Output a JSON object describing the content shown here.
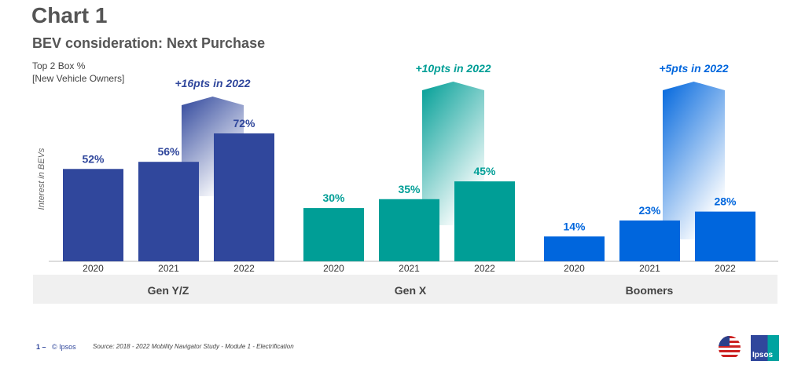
{
  "title": "Chart 1",
  "subtitle": "BEV consideration: Next Purchase",
  "note1": "Top 2 Box %",
  "note2": "[New Vehicle Owners]",
  "footer": {
    "page": "1 –",
    "copyright": "© Ipsos",
    "source": "Source: 2018 - 2022 Mobility Navigator Study - Module 1 - Electrification",
    "logo": "Ipsos"
  },
  "chart_data": {
    "type": "bar",
    "ylabel": "Interest in BEVs",
    "ylim": [
      0,
      100
    ],
    "grid": false,
    "groups": [
      {
        "name": "Gen Y/Z",
        "color": "#30479c",
        "categories": [
          "2020",
          "2021",
          "2022"
        ],
        "values": [
          52,
          56,
          72
        ],
        "labels": [
          "52%",
          "56%",
          "72%"
        ],
        "annotation": "+16pts in 2022"
      },
      {
        "name": "Gen X",
        "color": "#009e96",
        "categories": [
          "2020",
          "2021",
          "2022"
        ],
        "values": [
          30,
          35,
          45
        ],
        "labels": [
          "30%",
          "35%",
          "45%"
        ],
        "annotation": "+10pts in 2022"
      },
      {
        "name": "Boomers",
        "color": "#0066dd",
        "categories": [
          "2020",
          "2021",
          "2022"
        ],
        "values": [
          14,
          23,
          28
        ],
        "labels": [
          "14%",
          "23%",
          "28%"
        ],
        "annotation": "+5pts in 2022"
      }
    ]
  }
}
